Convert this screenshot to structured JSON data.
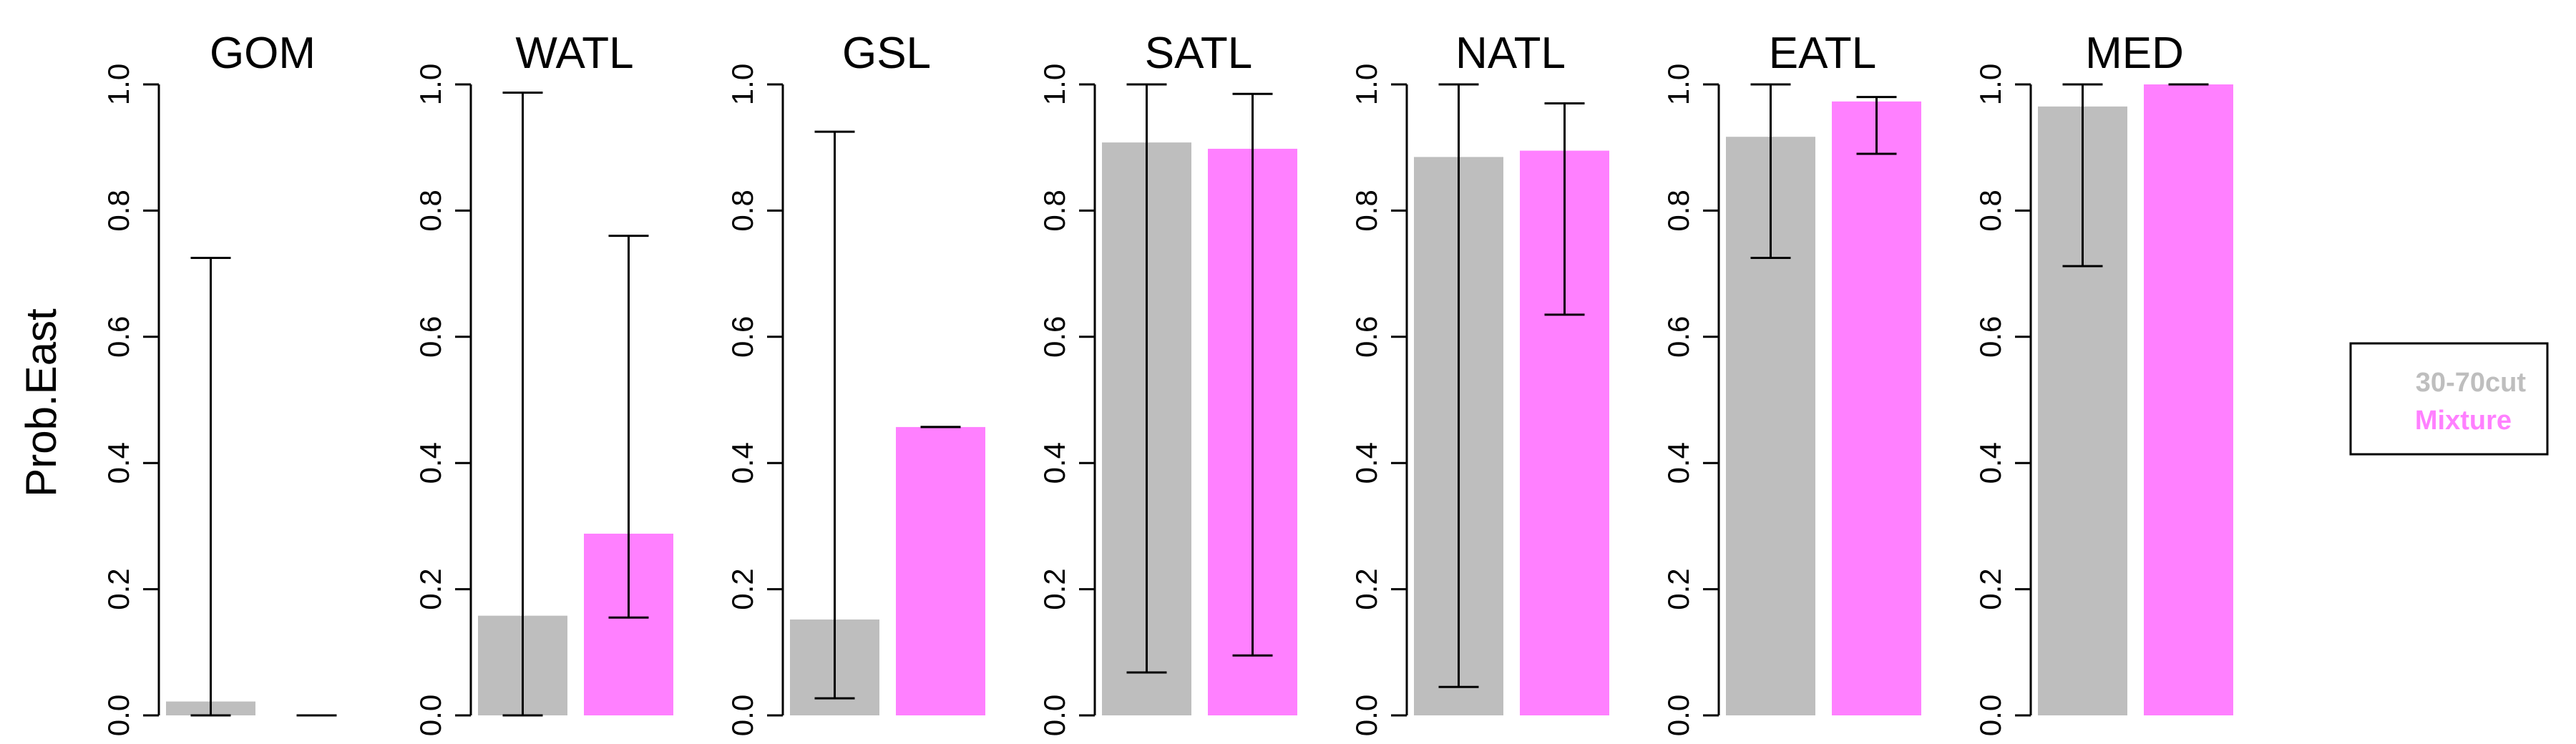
{
  "chart_data": {
    "type": "bar",
    "ylabel": "Prob.East",
    "ylim": [
      0,
      1
    ],
    "yticks": [
      "0.0",
      "0.2",
      "0.4",
      "0.6",
      "0.8",
      "1.0"
    ],
    "grid": false,
    "legend": {
      "placement": "right",
      "entries": [
        {
          "name": "30-70cut",
          "color": "#bebebe"
        },
        {
          "name": "Mixture",
          "color": "#ff80ff"
        }
      ]
    },
    "panels": [
      {
        "title": "GOM",
        "bars": [
          {
            "value": 0.022,
            "lower": 0.0,
            "upper": 0.725
          },
          {
            "value": 0.0,
            "lower": 0.0,
            "upper": 0.0
          }
        ]
      },
      {
        "title": "WATL",
        "bars": [
          {
            "value": 0.158,
            "lower": 0.0,
            "upper": 0.987
          },
          {
            "value": 0.288,
            "lower": 0.155,
            "upper": 0.76
          }
        ]
      },
      {
        "title": "GSL",
        "bars": [
          {
            "value": 0.152,
            "lower": 0.027,
            "upper": 0.925
          },
          {
            "value": 0.457,
            "lower": 0.457,
            "upper": 0.457
          }
        ]
      },
      {
        "title": "SATL",
        "bars": [
          {
            "value": 0.908,
            "lower": 0.068,
            "upper": 1.0
          },
          {
            "value": 0.898,
            "lower": 0.095,
            "upper": 0.985
          }
        ]
      },
      {
        "title": "NATL",
        "bars": [
          {
            "value": 0.885,
            "lower": 0.045,
            "upper": 1.0
          },
          {
            "value": 0.895,
            "lower": 0.635,
            "upper": 0.97
          }
        ]
      },
      {
        "title": "EATL",
        "bars": [
          {
            "value": 0.917,
            "lower": 0.725,
            "upper": 1.0
          },
          {
            "value": 0.973,
            "lower": 0.89,
            "upper": 0.98
          }
        ]
      },
      {
        "title": "MED",
        "bars": [
          {
            "value": 0.965,
            "lower": 0.712,
            "upper": 1.0
          },
          {
            "value": 1.0,
            "lower": 1.0,
            "upper": 1.0
          }
        ]
      }
    ]
  }
}
